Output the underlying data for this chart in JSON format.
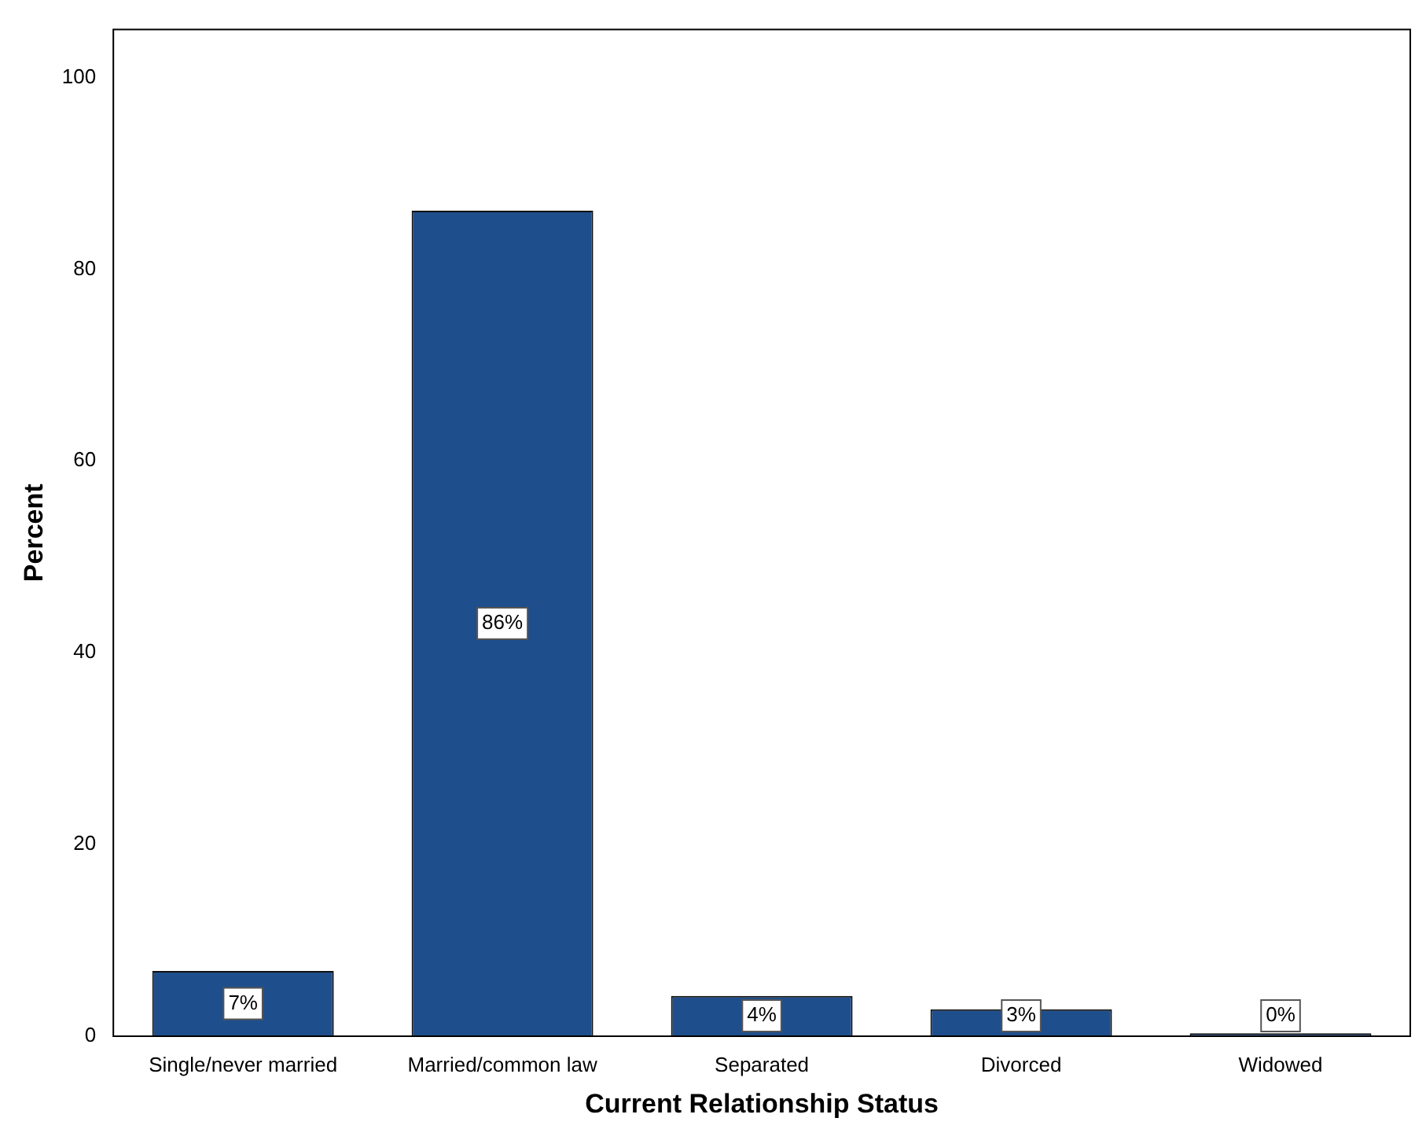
{
  "chart_data": {
    "type": "bar",
    "xlabel": "Current Relationship Status",
    "ylabel": "Percent",
    "categories": [
      "Single/never married",
      "Married/common law",
      "Separated",
      "Divorced",
      "Widowed"
    ],
    "values": [
      6.8,
      86.1,
      4.2,
      2.8,
      0.3
    ],
    "value_labels": [
      "7%",
      "86%",
      "4%",
      "3%",
      "0%"
    ],
    "color": "#1f4e8c",
    "ylim": [
      0,
      105
    ],
    "yticks": [
      0,
      20,
      40,
      60,
      80,
      100
    ],
    "grid": false,
    "legend": false
  }
}
